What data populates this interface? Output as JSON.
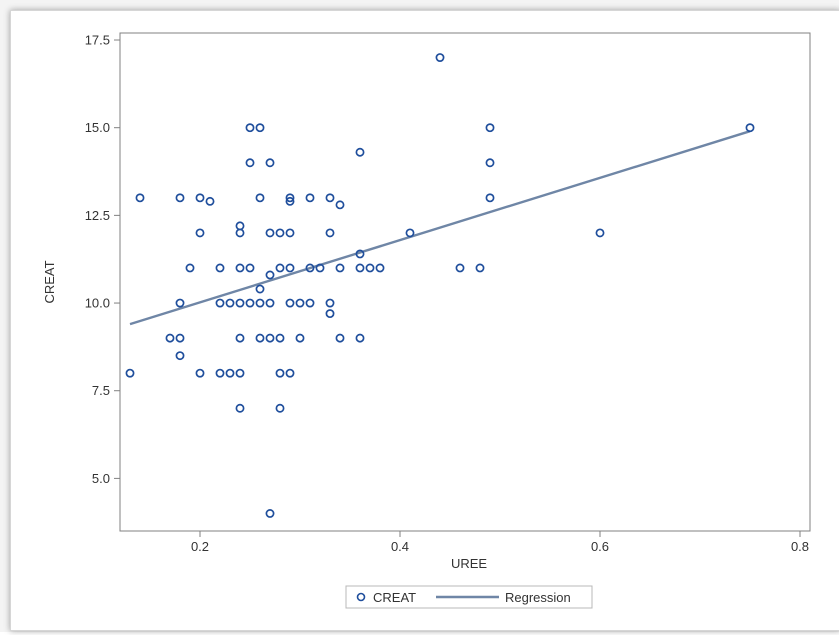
{
  "chart_data": {
    "type": "scatter",
    "xlabel": "UREE",
    "ylabel": "CREAT",
    "xlim": [
      0.12,
      0.81
    ],
    "ylim": [
      3.5,
      17.7
    ],
    "xticks": [
      0.2,
      0.4,
      0.6,
      0.8
    ],
    "xtick_labels": [
      "0.2",
      "0.4",
      "0.6",
      "0.8"
    ],
    "yticks": [
      5.0,
      7.5,
      10.0,
      12.5,
      15.0,
      17.5
    ],
    "ytick_labels": [
      "5.0",
      "7.5",
      "10.0",
      "12.5",
      "15.0",
      "17.5"
    ],
    "grid": false,
    "legend_position": "bottom",
    "series": [
      {
        "name": "CREAT",
        "kind": "markers",
        "color": "#1f4e9c",
        "points": [
          [
            0.13,
            8.0
          ],
          [
            0.14,
            13.0
          ],
          [
            0.17,
            9.0
          ],
          [
            0.18,
            13.0
          ],
          [
            0.18,
            10.0
          ],
          [
            0.18,
            9.0
          ],
          [
            0.18,
            8.5
          ],
          [
            0.19,
            11.0
          ],
          [
            0.2,
            13.0
          ],
          [
            0.2,
            12.0
          ],
          [
            0.2,
            8.0
          ],
          [
            0.21,
            12.9
          ],
          [
            0.22,
            11.0
          ],
          [
            0.22,
            10.0
          ],
          [
            0.22,
            8.0
          ],
          [
            0.23,
            10.0
          ],
          [
            0.23,
            8.0
          ],
          [
            0.24,
            12.2
          ],
          [
            0.24,
            12.0
          ],
          [
            0.24,
            11.0
          ],
          [
            0.24,
            10.0
          ],
          [
            0.24,
            9.0
          ],
          [
            0.24,
            8.0
          ],
          [
            0.24,
            7.0
          ],
          [
            0.25,
            15.0
          ],
          [
            0.25,
            14.0
          ],
          [
            0.25,
            11.0
          ],
          [
            0.25,
            10.0
          ],
          [
            0.26,
            15.0
          ],
          [
            0.26,
            13.0
          ],
          [
            0.26,
            10.4
          ],
          [
            0.26,
            10.0
          ],
          [
            0.26,
            9.0
          ],
          [
            0.27,
            14.0
          ],
          [
            0.27,
            12.0
          ],
          [
            0.27,
            10.8
          ],
          [
            0.27,
            10.0
          ],
          [
            0.27,
            9.0
          ],
          [
            0.27,
            4.0
          ],
          [
            0.28,
            12.0
          ],
          [
            0.28,
            11.0
          ],
          [
            0.28,
            9.0
          ],
          [
            0.28,
            8.0
          ],
          [
            0.28,
            7.0
          ],
          [
            0.29,
            13.0
          ],
          [
            0.29,
            12.9
          ],
          [
            0.29,
            12.0
          ],
          [
            0.29,
            11.0
          ],
          [
            0.29,
            10.0
          ],
          [
            0.29,
            8.0
          ],
          [
            0.3,
            10.0
          ],
          [
            0.3,
            9.0
          ],
          [
            0.31,
            13.0
          ],
          [
            0.31,
            11.0
          ],
          [
            0.31,
            10.0
          ],
          [
            0.32,
            11.0
          ],
          [
            0.33,
            13.0
          ],
          [
            0.33,
            12.0
          ],
          [
            0.33,
            10.0
          ],
          [
            0.33,
            9.7
          ],
          [
            0.34,
            12.8
          ],
          [
            0.34,
            11.0
          ],
          [
            0.34,
            9.0
          ],
          [
            0.36,
            14.3
          ],
          [
            0.36,
            11.4
          ],
          [
            0.36,
            11.0
          ],
          [
            0.36,
            9.0
          ],
          [
            0.37,
            11.0
          ],
          [
            0.38,
            11.0
          ],
          [
            0.41,
            12.0
          ],
          [
            0.44,
            17.0
          ],
          [
            0.46,
            11.0
          ],
          [
            0.48,
            11.0
          ],
          [
            0.49,
            15.0
          ],
          [
            0.49,
            14.0
          ],
          [
            0.49,
            13.0
          ],
          [
            0.6,
            12.0
          ],
          [
            0.75,
            15.0
          ]
        ]
      },
      {
        "name": "Regression",
        "kind": "line",
        "color": "#6f86a6",
        "points": [
          [
            0.13,
            9.4
          ],
          [
            0.75,
            14.9
          ]
        ]
      }
    ]
  }
}
